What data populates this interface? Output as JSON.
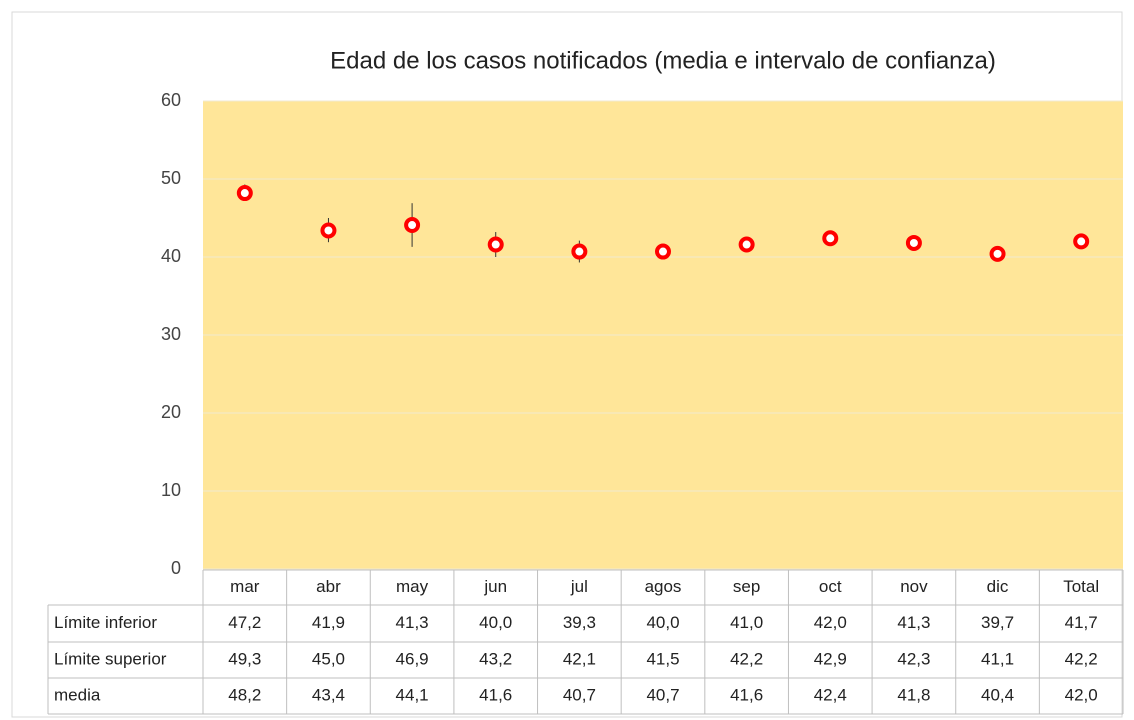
{
  "chart_data": {
    "type": "errorbar",
    "title": "Edad de los casos notificados (media e intervalo de confianza)",
    "categories": [
      "mar",
      "abr",
      "may",
      "jun",
      "jul",
      "agos",
      "sep",
      "oct",
      "nov",
      "dic",
      "Total"
    ],
    "ylim": [
      0,
      60
    ],
    "yticks": [
      0,
      10,
      20,
      30,
      40,
      50,
      60
    ],
    "grid": true,
    "plot_background": "#ffe699",
    "series": [
      {
        "name": "Límite inferior",
        "values": [
          47.2,
          41.9,
          41.3,
          40.0,
          39.3,
          40.0,
          41.0,
          42.0,
          41.3,
          39.7,
          41.7
        ],
        "value_labels": [
          "47,2",
          "41,9",
          "41,3",
          "40,0",
          "39,3",
          "40,0",
          "41,0",
          "42,0",
          "41,3",
          "39,7",
          "41,7"
        ]
      },
      {
        "name": "Límite superior",
        "values": [
          49.3,
          45.0,
          46.9,
          43.2,
          42.1,
          41.5,
          42.2,
          42.9,
          42.3,
          41.1,
          42.2
        ],
        "value_labels": [
          "49,3",
          "45,0",
          "46,9",
          "43,2",
          "42,1",
          "41,5",
          "42,2",
          "42,9",
          "42,3",
          "41,1",
          "42,2"
        ]
      },
      {
        "name": "media",
        "color": "#ff0000",
        "values": [
          48.2,
          43.4,
          44.1,
          41.6,
          40.7,
          40.7,
          41.6,
          42.4,
          41.8,
          40.4,
          42.0
        ],
        "value_labels": [
          "48,2",
          "43,4",
          "44,1",
          "41,6",
          "40,7",
          "40,7",
          "41,6",
          "42,4",
          "41,8",
          "40,4",
          "42,0"
        ]
      }
    ]
  }
}
